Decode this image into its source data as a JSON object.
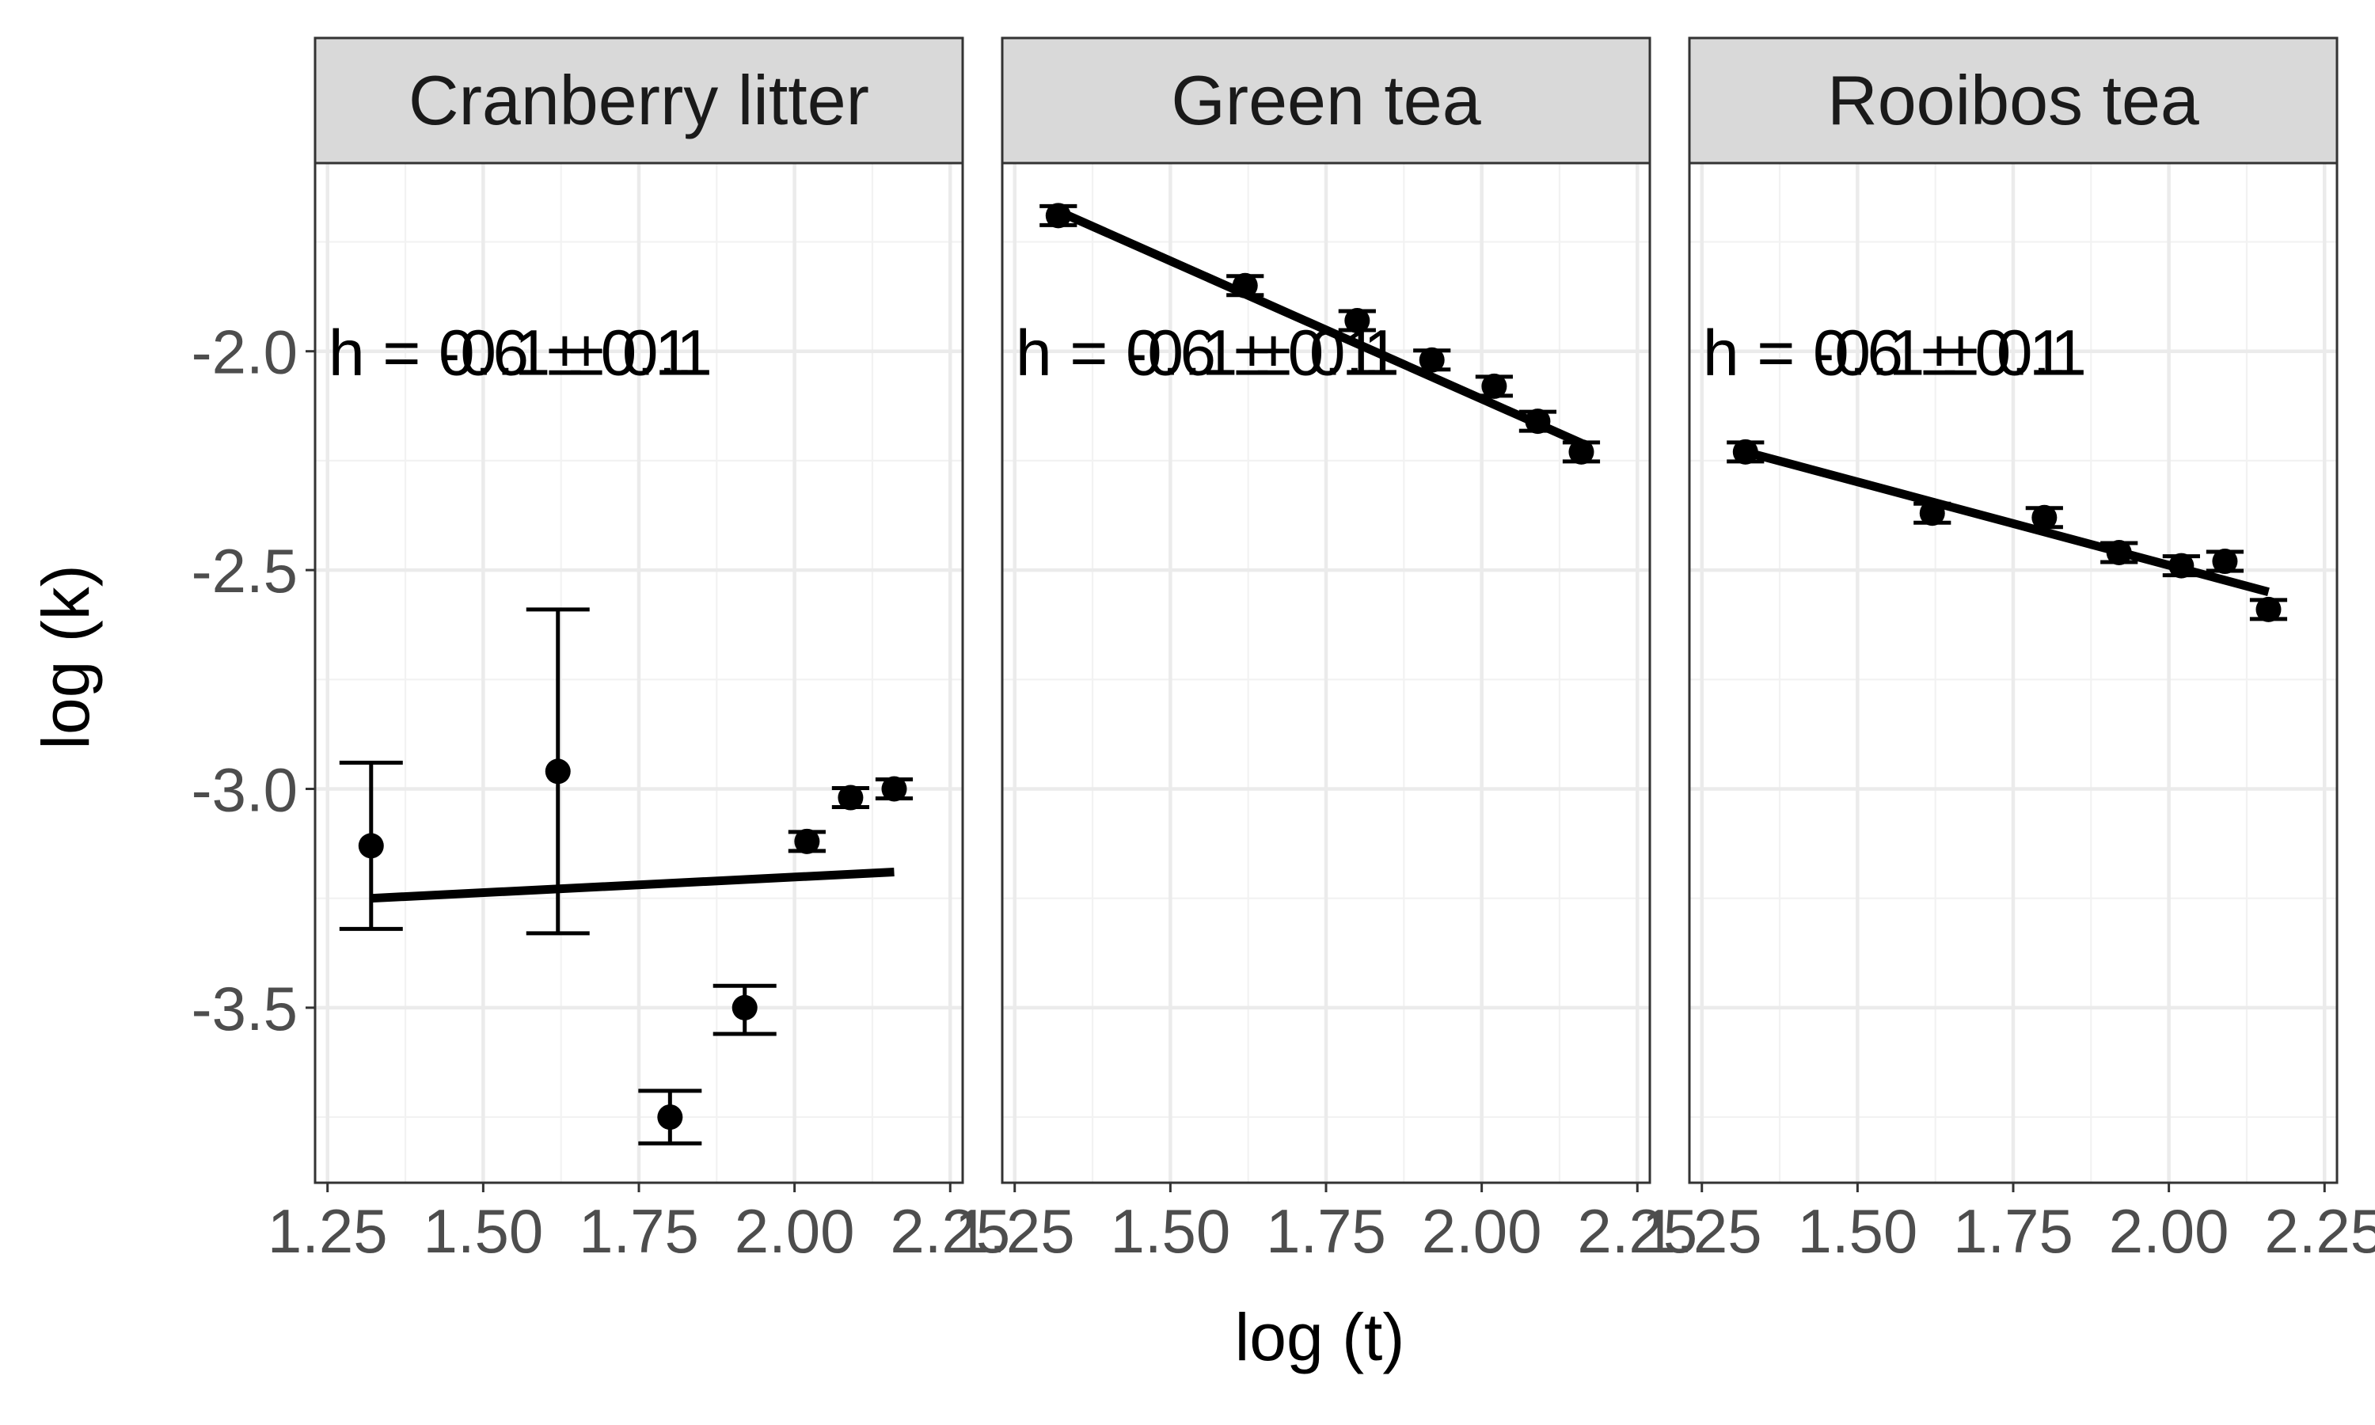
{
  "chart_data": {
    "type": "scatter",
    "xlabel": "log (t)",
    "ylabel": "log (k)",
    "xlim": [
      1.23,
      2.27
    ],
    "ylim": [
      -3.9,
      -1.57
    ],
    "x_ticks": [
      1.25,
      1.5,
      1.75,
      2.0,
      2.25
    ],
    "x_tick_labels": [
      "1.25",
      "1.50",
      "1.75",
      "2.00",
      "2.25"
    ],
    "y_ticks": [
      -2.0,
      -2.5,
      -3.0,
      -3.5
    ],
    "y_tick_labels": [
      "-2.0",
      "-2.5",
      "-3.0",
      "-3.5"
    ],
    "grid": true,
    "panels": [
      {
        "name": "Cranberry litter",
        "annotations": [
          "h = 0.6 ± 0.1",
          "h = -0.1 ± 0.1"
        ],
        "points": [
          {
            "x": 1.32,
            "y": -3.13,
            "xerr": 0.0,
            "ylo": -3.32,
            "yhi": -2.94
          },
          {
            "x": 1.62,
            "y": -2.96,
            "xerr": 0.0,
            "ylo": -3.33,
            "yhi": -2.59
          },
          {
            "x": 1.8,
            "y": -3.75,
            "xerr": 0.0,
            "ylo": -3.81,
            "yhi": -3.69
          },
          {
            "x": 1.92,
            "y": -3.5,
            "xerr": 0.0,
            "ylo": -3.56,
            "yhi": -3.45
          },
          {
            "x": 2.02,
            "y": -3.12,
            "xerr": 0.03,
            "ylo": -3.12,
            "yhi": -3.12
          },
          {
            "x": 2.09,
            "y": -3.02,
            "xerr": 0.03,
            "ylo": -3.02,
            "yhi": -3.02
          },
          {
            "x": 2.16,
            "y": -3.0,
            "xerr": 0.03,
            "ylo": -3.0,
            "yhi": -3.0
          }
        ],
        "fit": {
          "x": [
            1.32,
            2.16
          ],
          "y": [
            -3.25,
            -3.19
          ]
        }
      },
      {
        "name": "Green tea",
        "annotations": [
          "h = 0.6 ± 0.1",
          "h = -0.1 ± 0.1"
        ],
        "points": [
          {
            "x": 1.32,
            "y": -1.69,
            "xerr": 0.03,
            "ylo": -1.69,
            "yhi": -1.69
          },
          {
            "x": 1.62,
            "y": -1.85,
            "xerr": 0.03,
            "ylo": -1.85,
            "yhi": -1.85
          },
          {
            "x": 1.8,
            "y": -1.93,
            "xerr": 0.03,
            "ylo": -1.93,
            "yhi": -1.93
          },
          {
            "x": 1.92,
            "y": -2.02,
            "xerr": 0.03,
            "ylo": -2.02,
            "yhi": -2.02
          },
          {
            "x": 2.02,
            "y": -2.08,
            "xerr": 0.03,
            "ylo": -2.08,
            "yhi": -2.08
          },
          {
            "x": 2.09,
            "y": -2.16,
            "xerr": 0.03,
            "ylo": -2.16,
            "yhi": -2.16
          },
          {
            "x": 2.16,
            "y": -2.23,
            "xerr": 0.03,
            "ylo": -2.23,
            "yhi": -2.23
          }
        ],
        "fit": {
          "x": [
            1.32,
            2.16
          ],
          "y": [
            -1.68,
            -2.21
          ]
        }
      },
      {
        "name": "Rooibos tea",
        "annotations": [
          "h = 0.6 ± 0.1",
          "h = -0.1 ± 0.1"
        ],
        "points": [
          {
            "x": 1.32,
            "y": -2.23,
            "xerr": 0.03,
            "ylo": -2.23,
            "yhi": -2.23
          },
          {
            "x": 1.62,
            "y": -2.37,
            "xerr": 0.03,
            "ylo": -2.37,
            "yhi": -2.37
          },
          {
            "x": 1.8,
            "y": -2.38,
            "xerr": 0.03,
            "ylo": -2.38,
            "yhi": -2.38
          },
          {
            "x": 1.92,
            "y": -2.46,
            "xerr": 0.03,
            "ylo": -2.46,
            "yhi": -2.46
          },
          {
            "x": 2.02,
            "y": -2.49,
            "xerr": 0.03,
            "ylo": -2.49,
            "yhi": -2.49
          },
          {
            "x": 2.09,
            "y": -2.48,
            "xerr": 0.03,
            "ylo": -2.48,
            "yhi": -2.48
          },
          {
            "x": 2.16,
            "y": -2.59,
            "xerr": 0.03,
            "ylo": -2.59,
            "yhi": -2.59
          }
        ],
        "fit": {
          "x": [
            1.32,
            2.16
          ],
          "y": [
            -2.23,
            -2.55
          ]
        }
      }
    ]
  }
}
